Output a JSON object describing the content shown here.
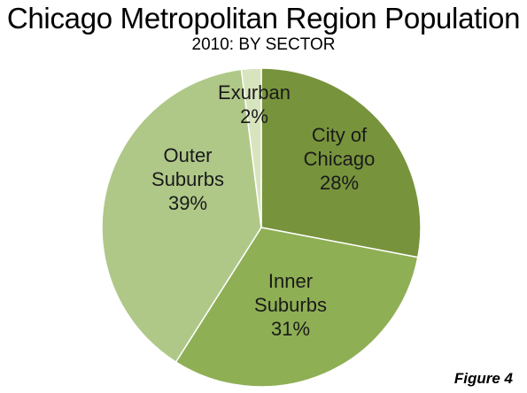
{
  "chart_data": {
    "type": "pie",
    "title": "Chicago Metropolitan Region Population",
    "subtitle": "2010: BY SECTOR",
    "slices": [
      {
        "label": [
          "City of",
          "Chicago"
        ],
        "value": 28,
        "display": "28%",
        "color": "#77933C"
      },
      {
        "label": [
          "Inner",
          "Suburbs"
        ],
        "value": 31,
        "display": "31%",
        "color": "#8EAF54"
      },
      {
        "label": [
          "Outer",
          "Suburbs"
        ],
        "value": 39,
        "display": "39%",
        "color": "#AFC888"
      },
      {
        "label": [
          "Exurban"
        ],
        "value": 2,
        "display": "2%",
        "color": "#D7E4BD"
      }
    ]
  },
  "figure_label": "Figure 4"
}
